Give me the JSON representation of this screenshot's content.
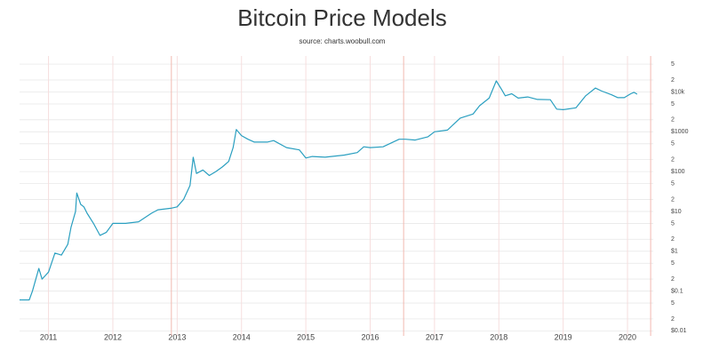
{
  "chart_data": {
    "type": "line",
    "title": "Bitcoin Price Models",
    "subtitle": "source: charts.woobull.com",
    "log_y": true,
    "grid": true,
    "color": "#2a9fc0",
    "grid_color": "#e8e8e8",
    "x_grid_color": "#f6dede",
    "marker_lines": [
      2012.91,
      2016.52,
      2020.36
    ],
    "marker_color": "#f2b8b0",
    "xlim": [
      2010.55,
      2020.4
    ],
    "xticks": [
      2011,
      2012,
      2013,
      2014,
      2015,
      2016,
      2017,
      2018,
      2019,
      2020
    ],
    "ylim": [
      0.0075,
      80000
    ],
    "yticks": [
      {
        "value": 0.01,
        "label": "$0.01"
      },
      {
        "value": 0.02,
        "label": "2"
      },
      {
        "value": 0.05,
        "label": "5"
      },
      {
        "value": 0.1,
        "label": "$0.1"
      },
      {
        "value": 0.2,
        "label": "2"
      },
      {
        "value": 0.5,
        "label": "5"
      },
      {
        "value": 1,
        "label": "$1"
      },
      2,
      5,
      {
        "value": 10,
        "label": "$10"
      },
      {
        "value": 20,
        "label": "2"
      },
      {
        "value": 50,
        "label": "5"
      },
      {
        "value": 100,
        "label": "$100"
      },
      {
        "value": 200,
        "label": "2"
      },
      {
        "value": 500,
        "label": "5"
      },
      {
        "value": 1000,
        "label": "$1000"
      },
      {
        "value": 2000,
        "label": "2"
      },
      {
        "value": 5000,
        "label": "5"
      },
      {
        "value": 10000,
        "label": "$10k"
      },
      {
        "value": 20000,
        "label": "2"
      },
      {
        "value": 50000,
        "label": "5"
      }
    ],
    "x": [
      2010.55,
      2010.7,
      2010.75,
      2010.85,
      2010.9,
      2011.0,
      2011.1,
      2011.2,
      2011.3,
      2011.35,
      2011.42,
      2011.44,
      2011.5,
      2011.55,
      2011.6,
      2011.7,
      2011.8,
      2011.9,
      2012.0,
      2012.2,
      2012.4,
      2012.6,
      2012.7,
      2012.9,
      2013.0,
      2013.1,
      2013.2,
      2013.25,
      2013.3,
      2013.4,
      2013.5,
      2013.6,
      2013.7,
      2013.8,
      2013.87,
      2013.92,
      2014.0,
      2014.1,
      2014.2,
      2014.4,
      2014.5,
      2014.7,
      2014.9,
      2015.0,
      2015.1,
      2015.3,
      2015.6,
      2015.8,
      2015.9,
      2016.0,
      2016.2,
      2016.45,
      2016.55,
      2016.7,
      2016.9,
      2017.0,
      2017.2,
      2017.4,
      2017.6,
      2017.7,
      2017.85,
      2017.96,
      2018.05,
      2018.1,
      2018.2,
      2018.3,
      2018.45,
      2018.6,
      2018.8,
      2018.9,
      2019.0,
      2019.2,
      2019.35,
      2019.5,
      2019.6,
      2019.75,
      2019.85,
      2019.95,
      2020.05,
      2020.1,
      2020.15
    ],
    "values": [
      0.06,
      0.06,
      0.1,
      0.37,
      0.2,
      0.3,
      0.9,
      0.8,
      1.5,
      4,
      10,
      29,
      15,
      13,
      9,
      5,
      2.5,
      3,
      5,
      5,
      5.5,
      9,
      11,
      12,
      13,
      20,
      45,
      229,
      90,
      110,
      80,
      100,
      130,
      180,
      400,
      1140,
      800,
      650,
      550,
      550,
      600,
      400,
      350,
      220,
      240,
      230,
      260,
      300,
      420,
      400,
      420,
      650,
      650,
      620,
      750,
      1000,
      1100,
      2200,
      2800,
      4500,
      7000,
      19000,
      11000,
      8000,
      9000,
      7000,
      7500,
      6500,
      6400,
      3700,
      3600,
      4000,
      8000,
      12500,
      10500,
      8500,
      7200,
      7200,
      9000,
      9800,
      8800
    ]
  }
}
